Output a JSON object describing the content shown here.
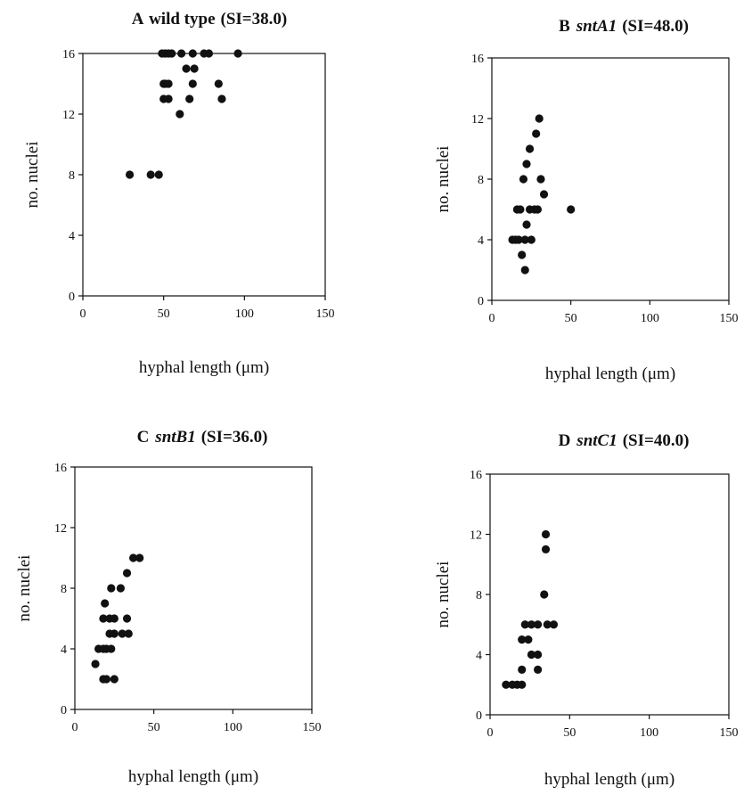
{
  "chart_data": [
    {
      "type": "scatter",
      "panel_letter": "A",
      "title_genotype": "wild type",
      "title_genotype_italic": false,
      "title_si": "(SI=38.0)",
      "xlabel": "hyphal length (μm)",
      "ylabel": "no. nuclei",
      "xlim": [
        0,
        150
      ],
      "ylim": [
        0,
        16
      ],
      "xticks": [
        "0",
        "50",
        "100",
        "150"
      ],
      "yticks": [
        "0",
        "4",
        "8",
        "12",
        "16"
      ],
      "grid": false,
      "points": [
        {
          "x": 29,
          "y": 8
        },
        {
          "x": 42,
          "y": 8
        },
        {
          "x": 47,
          "y": 8
        },
        {
          "x": 49,
          "y": 16
        },
        {
          "x": 51,
          "y": 16
        },
        {
          "x": 53,
          "y": 16
        },
        {
          "x": 55,
          "y": 16
        },
        {
          "x": 61,
          "y": 16
        },
        {
          "x": 68,
          "y": 16
        },
        {
          "x": 75,
          "y": 16
        },
        {
          "x": 78,
          "y": 16
        },
        {
          "x": 96,
          "y": 16
        },
        {
          "x": 64,
          "y": 15
        },
        {
          "x": 69,
          "y": 15
        },
        {
          "x": 50,
          "y": 14
        },
        {
          "x": 51,
          "y": 14
        },
        {
          "x": 53,
          "y": 14
        },
        {
          "x": 68,
          "y": 14
        },
        {
          "x": 84,
          "y": 14
        },
        {
          "x": 50,
          "y": 13
        },
        {
          "x": 53,
          "y": 13
        },
        {
          "x": 66,
          "y": 13
        },
        {
          "x": 86,
          "y": 13
        },
        {
          "x": 60,
          "y": 12
        }
      ]
    },
    {
      "type": "scatter",
      "panel_letter": "B",
      "title_genotype": "sntA1",
      "title_genotype_italic": true,
      "title_si": "(SI=48.0)",
      "xlabel": "hyphal length (μm)",
      "ylabel": "no. nuclei",
      "xlim": [
        0,
        150
      ],
      "ylim": [
        0,
        16
      ],
      "xticks": [
        "0",
        "50",
        "100",
        "150"
      ],
      "yticks": [
        "0",
        "4",
        "8",
        "12",
        "16"
      ],
      "grid": false,
      "points": [
        {
          "x": 30,
          "y": 12
        },
        {
          "x": 28,
          "y": 11
        },
        {
          "x": 24,
          "y": 10
        },
        {
          "x": 22,
          "y": 9
        },
        {
          "x": 20,
          "y": 8
        },
        {
          "x": 31,
          "y": 8
        },
        {
          "x": 33,
          "y": 7
        },
        {
          "x": 16,
          "y": 6
        },
        {
          "x": 18,
          "y": 6
        },
        {
          "x": 24,
          "y": 6
        },
        {
          "x": 27,
          "y": 6
        },
        {
          "x": 29,
          "y": 6
        },
        {
          "x": 50,
          "y": 6
        },
        {
          "x": 22,
          "y": 5
        },
        {
          "x": 13,
          "y": 4
        },
        {
          "x": 15,
          "y": 4
        },
        {
          "x": 17,
          "y": 4
        },
        {
          "x": 21,
          "y": 4
        },
        {
          "x": 25,
          "y": 4
        },
        {
          "x": 19,
          "y": 3
        },
        {
          "x": 21,
          "y": 2
        }
      ]
    },
    {
      "type": "scatter",
      "panel_letter": "C",
      "title_genotype": "sntB1",
      "title_genotype_italic": true,
      "title_si": "(SI=36.0)",
      "xlabel": "hyphal length (μm)",
      "ylabel": "no. nuclei",
      "xlim": [
        0,
        150
      ],
      "ylim": [
        0,
        16
      ],
      "xticks": [
        "0",
        "50",
        "100",
        "150"
      ],
      "yticks": [
        "0",
        "4",
        "8",
        "12",
        "16"
      ],
      "grid": false,
      "points": [
        {
          "x": 37,
          "y": 10
        },
        {
          "x": 41,
          "y": 10
        },
        {
          "x": 33,
          "y": 9
        },
        {
          "x": 23,
          "y": 8
        },
        {
          "x": 29,
          "y": 8
        },
        {
          "x": 19,
          "y": 7
        },
        {
          "x": 18,
          "y": 6
        },
        {
          "x": 22,
          "y": 6
        },
        {
          "x": 25,
          "y": 6
        },
        {
          "x": 33,
          "y": 6
        },
        {
          "x": 22,
          "y": 5
        },
        {
          "x": 25,
          "y": 5
        },
        {
          "x": 30,
          "y": 5
        },
        {
          "x": 34,
          "y": 5
        },
        {
          "x": 15,
          "y": 4
        },
        {
          "x": 18,
          "y": 4
        },
        {
          "x": 20,
          "y": 4
        },
        {
          "x": 23,
          "y": 4
        },
        {
          "x": 13,
          "y": 3
        },
        {
          "x": 18,
          "y": 2
        },
        {
          "x": 20,
          "y": 2
        },
        {
          "x": 25,
          "y": 2
        }
      ]
    },
    {
      "type": "scatter",
      "panel_letter": "D",
      "title_genotype": "sntC1",
      "title_genotype_italic": true,
      "title_si": "(SI=40.0)",
      "xlabel": "hyphal length (μm)",
      "ylabel": "no. nuclei",
      "xlim": [
        0,
        150
      ],
      "ylim": [
        0,
        16
      ],
      "xticks": [
        "0",
        "50",
        "100",
        "150"
      ],
      "yticks": [
        "0",
        "4",
        "8",
        "12",
        "16"
      ],
      "grid": false,
      "points": [
        {
          "x": 35,
          "y": 12
        },
        {
          "x": 35,
          "y": 11
        },
        {
          "x": 34,
          "y": 8
        },
        {
          "x": 22,
          "y": 6
        },
        {
          "x": 26,
          "y": 6
        },
        {
          "x": 30,
          "y": 6
        },
        {
          "x": 36,
          "y": 6
        },
        {
          "x": 40,
          "y": 6
        },
        {
          "x": 20,
          "y": 5
        },
        {
          "x": 24,
          "y": 5
        },
        {
          "x": 26,
          "y": 4
        },
        {
          "x": 30,
          "y": 4
        },
        {
          "x": 20,
          "y": 3
        },
        {
          "x": 30,
          "y": 3
        },
        {
          "x": 10,
          "y": 2
        },
        {
          "x": 14,
          "y": 2
        },
        {
          "x": 17,
          "y": 2
        },
        {
          "x": 20,
          "y": 2
        }
      ]
    }
  ]
}
